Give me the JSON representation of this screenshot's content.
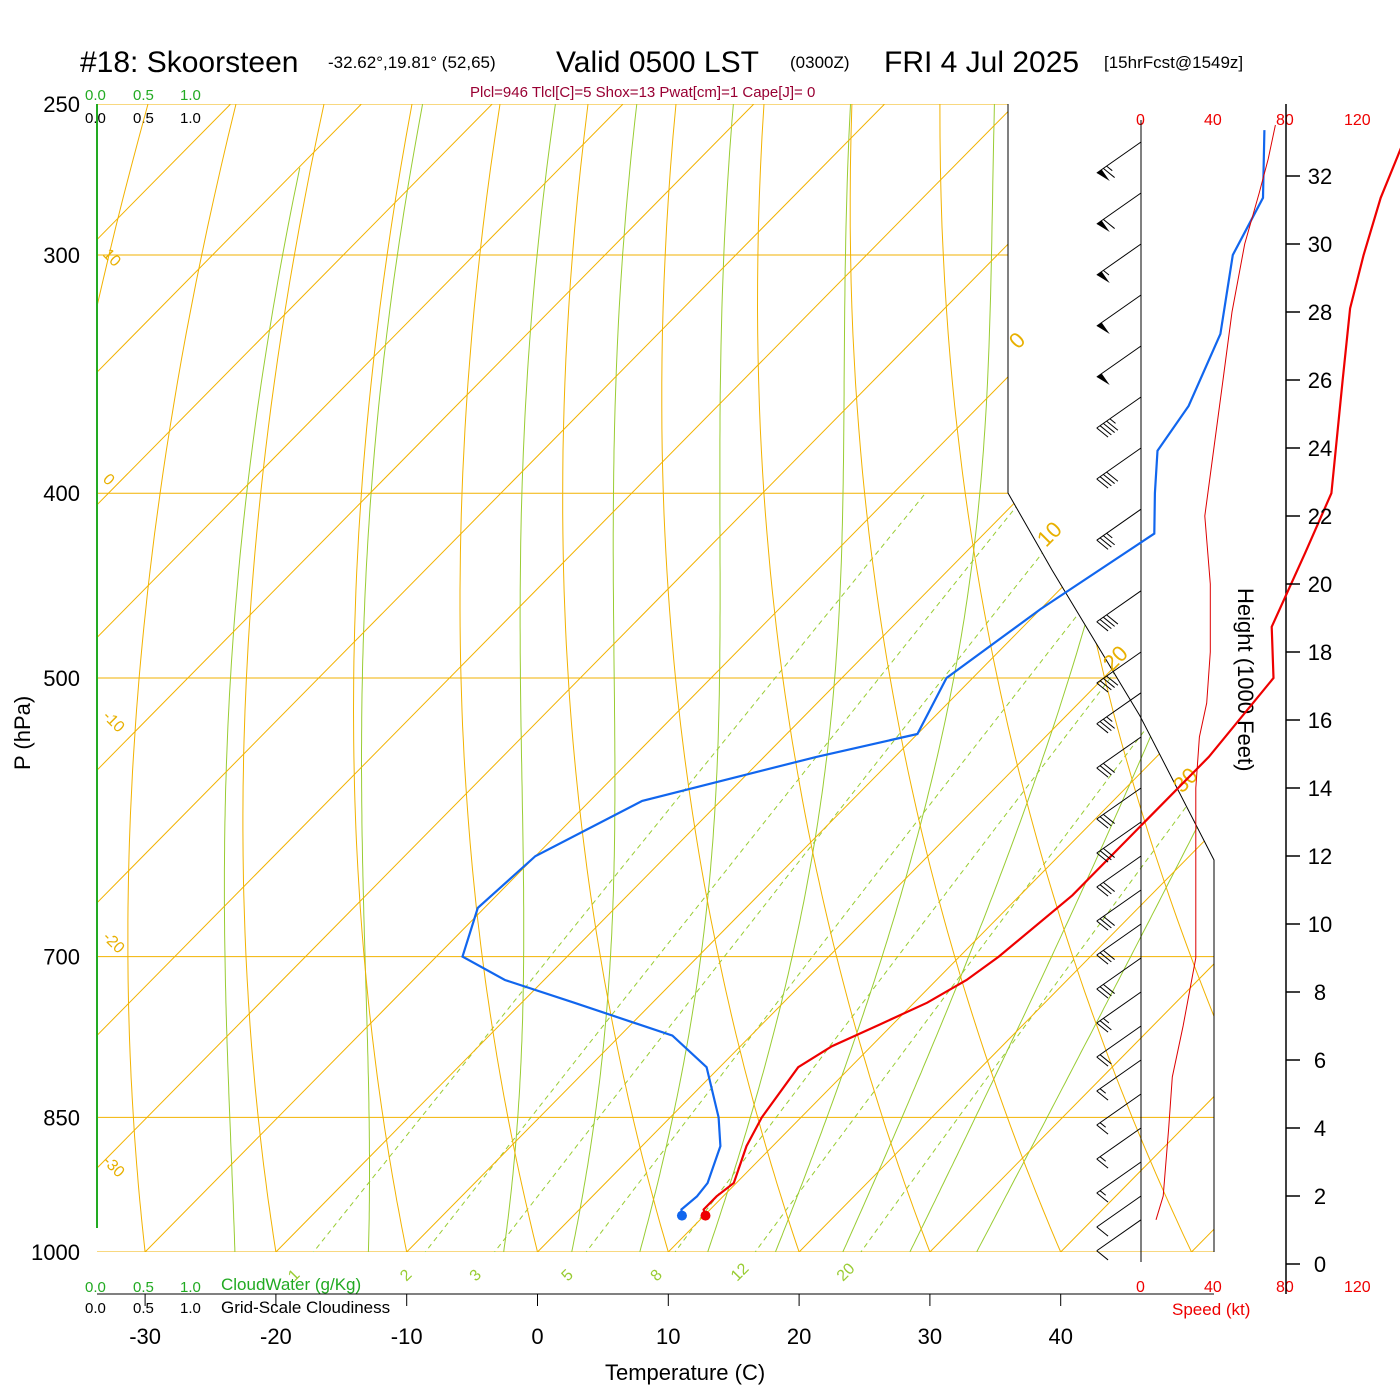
{
  "title": {
    "station": "#18: Skoorsteen",
    "coords": "-32.62°,19.81° (52,65)",
    "valid": "Valid 0500 LST",
    "utc": "(0300Z)",
    "date": "FRI 4 Jul 2025",
    "forecast": "[15hrFcst@1549z]"
  },
  "info_line": "Plcl=946 Tlcl[C]=5 Shox=13 Pwat[cm]=1 Cape[J]= 0",
  "cloud_scale_top_green": [
    "0.0",
    "0.5",
    "1.0"
  ],
  "cloud_scale_top_black": [
    "0.0",
    "0.5",
    "1.0"
  ],
  "cloud_scale_bottom_green": [
    "0.0",
    "0.5",
    "1.0"
  ],
  "cloud_scale_bottom_black": [
    "0.0",
    "0.5",
    "1.0"
  ],
  "cloudwater_label": "CloudWater (g/Kg)",
  "cloudiness_label": "Grid-Scale Cloudiness",
  "speed_label": "Speed (kt)",
  "speed_ticks": [
    "0",
    "40",
    "80",
    "120"
  ],
  "colors": {
    "temperature": "#ee0000",
    "dewpoint": "#1166ee",
    "isotherm": "#f2b200",
    "mixing_ratio": "#99cc33",
    "moist_adiabat": "#99cc33",
    "dry_adiabat": "#f2b200",
    "cloud_water": "#22aa22",
    "wind_speed": "#dd0000"
  },
  "chart_data": {
    "type": "line",
    "title": "#18: Skoorsteen",
    "xlabel": "Temperature (C)",
    "ylabel": "P (hPa)",
    "y2label": "Height (1000 Feet)",
    "ylog": true,
    "pressure_ticks": [
      250,
      300,
      400,
      500,
      700,
      850,
      1000
    ],
    "temperature_ticks": [
      -30,
      -20,
      -10,
      0,
      10,
      20,
      30,
      40
    ],
    "height_ticks": [
      0,
      2,
      4,
      6,
      8,
      10,
      12,
      14,
      16,
      18,
      20,
      22,
      24,
      26,
      28,
      30,
      32
    ],
    "isotherm_labels": [
      "10",
      "0",
      "-10",
      "-20",
      "-30"
    ],
    "dry_adiabat_labels": [
      "0",
      "10",
      "20",
      "30"
    ],
    "mixing_ratio_labels": [
      "1",
      "2",
      "3",
      "5",
      "8",
      "12",
      "20"
    ],
    "series": [
      {
        "name": "Temperature",
        "points": [
          [
            957,
            10.1
          ],
          [
            950,
            9.5
          ],
          [
            935,
            9.5
          ],
          [
            920,
            9.8
          ],
          [
            880,
            8.0
          ],
          [
            850,
            7.0
          ],
          [
            800,
            6.0
          ],
          [
            780,
            7.0
          ],
          [
            760,
            9.0
          ],
          [
            740,
            11.0
          ],
          [
            720,
            12.3
          ],
          [
            700,
            13.0
          ],
          [
            650,
            14.0
          ],
          [
            600,
            14.0
          ],
          [
            550,
            14.0
          ],
          [
            500,
            13.0
          ],
          [
            470,
            9.0
          ],
          [
            430,
            6.0
          ],
          [
            400,
            3.5
          ],
          [
            350,
            -4.0
          ],
          [
            320,
            -9.0
          ],
          [
            300,
            -12.0
          ],
          [
            280,
            -15.0
          ],
          [
            258,
            -18.0
          ]
        ]
      },
      {
        "name": "Dewpoint",
        "points": [
          [
            957,
            8.3
          ],
          [
            950,
            7.8
          ],
          [
            935,
            8.0
          ],
          [
            920,
            7.8
          ],
          [
            880,
            6.0
          ],
          [
            850,
            3.7
          ],
          [
            800,
            -1.0
          ],
          [
            770,
            -6.0
          ],
          [
            740,
            -16.0
          ],
          [
            720,
            -23.0
          ],
          [
            700,
            -28.0
          ],
          [
            660,
            -30.5
          ],
          [
            620,
            -30.0
          ],
          [
            580,
            -26.0
          ],
          [
            550,
            -16.0
          ],
          [
            535,
            -10.0
          ],
          [
            500,
            -12.0
          ],
          [
            460,
            -10.0
          ],
          [
            420,
            -7.0
          ],
          [
            400,
            -10.0
          ],
          [
            380,
            -13.0
          ],
          [
            360,
            -14.0
          ],
          [
            330,
            -17.0
          ],
          [
            300,
            -22.0
          ],
          [
            280,
            -24.0
          ],
          [
            258,
            -29.0
          ]
        ]
      }
    ],
    "wind_speed_profile_kt": [
      [
        1.3,
        8
      ],
      [
        2.0,
        12
      ],
      [
        4.0,
        15
      ],
      [
        5.5,
        17
      ],
      [
        7.0,
        23
      ],
      [
        9.0,
        30
      ],
      [
        10.5,
        30
      ],
      [
        12.0,
        30
      ],
      [
        14.0,
        30
      ],
      [
        15.5,
        32
      ],
      [
        16.5,
        36
      ],
      [
        18.0,
        38
      ],
      [
        20.0,
        38
      ],
      [
        22.0,
        35
      ],
      [
        24.0,
        40
      ],
      [
        26.0,
        45
      ],
      [
        28.0,
        50
      ],
      [
        30.0,
        57
      ],
      [
        31.5,
        65
      ],
      [
        32.5,
        70
      ],
      [
        33.5,
        74
      ]
    ],
    "wind_barbs": [
      {
        "height_kft": 1.3,
        "speed_kt": 8
      },
      {
        "height_kft": 2.0,
        "speed_kt": 10
      },
      {
        "height_kft": 3.0,
        "speed_kt": 14
      },
      {
        "height_kft": 4.0,
        "speed_kt": 15
      },
      {
        "height_kft": 5.0,
        "speed_kt": 16
      },
      {
        "height_kft": 6.0,
        "speed_kt": 17
      },
      {
        "height_kft": 7.0,
        "speed_kt": 20
      },
      {
        "height_kft": 8.0,
        "speed_kt": 25
      },
      {
        "height_kft": 9.0,
        "speed_kt": 28
      },
      {
        "height_kft": 10.0,
        "speed_kt": 30
      },
      {
        "height_kft": 11.0,
        "speed_kt": 30
      },
      {
        "height_kft": 12.0,
        "speed_kt": 30
      },
      {
        "height_kft": 13.0,
        "speed_kt": 30
      },
      {
        "height_kft": 14.0,
        "speed_kt": 30
      },
      {
        "height_kft": 15.5,
        "speed_kt": 32
      },
      {
        "height_kft": 16.8,
        "speed_kt": 35
      },
      {
        "height_kft": 18.0,
        "speed_kt": 38
      },
      {
        "height_kft": 19.8,
        "speed_kt": 38
      },
      {
        "height_kft": 22.2,
        "speed_kt": 35
      },
      {
        "height_kft": 24.0,
        "speed_kt": 40
      },
      {
        "height_kft": 25.5,
        "speed_kt": 45
      },
      {
        "height_kft": 27.0,
        "speed_kt": 48
      },
      {
        "height_kft": 28.5,
        "speed_kt": 50
      },
      {
        "height_kft": 30.0,
        "speed_kt": 55
      },
      {
        "height_kft": 31.5,
        "speed_kt": 60
      },
      {
        "height_kft": 33.0,
        "speed_kt": 65
      }
    ]
  }
}
